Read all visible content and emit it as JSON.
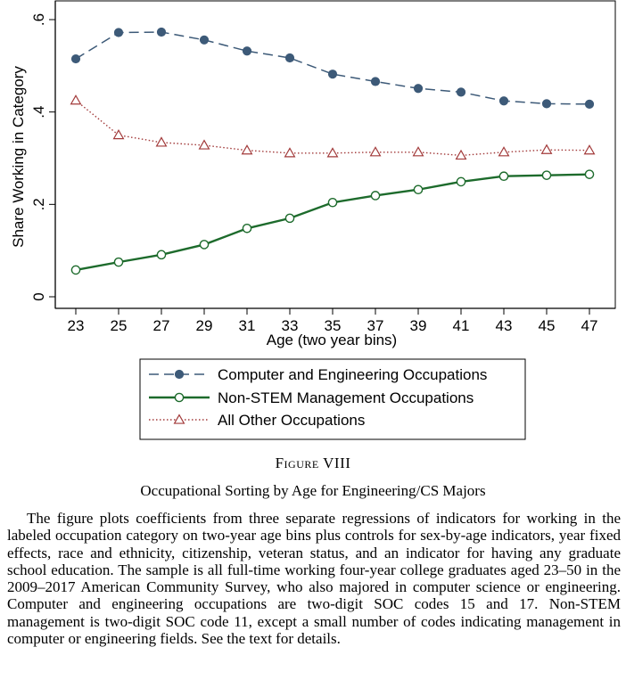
{
  "chart_data": {
    "type": "line",
    "xlabel": "Age (two year bins)",
    "ylabel": "Share Working in Category",
    "x": [
      23,
      25,
      27,
      29,
      31,
      33,
      35,
      37,
      39,
      41,
      43,
      45,
      47
    ],
    "x_ticks": [
      "23",
      "25",
      "27",
      "29",
      "31",
      "33",
      "35",
      "37",
      "39",
      "41",
      "43",
      "45",
      "47"
    ],
    "ylim": [
      0,
      0.6
    ],
    "y_ticks": [
      {
        "value": 0,
        "label": "0"
      },
      {
        "value": 0.2,
        "label": ".2"
      },
      {
        "value": 0.4,
        "label": ".4"
      },
      {
        "value": 0.6,
        "label": ".6"
      }
    ],
    "grid": false,
    "legend_position": "below",
    "series": [
      {
        "name": "Computer and Engineering Occupations",
        "color": "#3d5a78",
        "line_style": "dashed",
        "marker": "filled-circle",
        "values": [
          0.515,
          0.572,
          0.573,
          0.556,
          0.532,
          0.517,
          0.482,
          0.466,
          0.451,
          0.443,
          0.424,
          0.418,
          0.417
        ]
      },
      {
        "name": "Non-STEM Management Occupations",
        "color": "#1d6b2c",
        "line_style": "solid",
        "marker": "hollow-circle",
        "values": [
          0.058,
          0.075,
          0.091,
          0.113,
          0.148,
          0.17,
          0.204,
          0.219,
          0.232,
          0.249,
          0.261,
          0.263,
          0.265
        ]
      },
      {
        "name": "All Other Occupations",
        "color": "#a23a3a",
        "line_style": "dotted",
        "marker": "hollow-triangle",
        "values": [
          0.425,
          0.35,
          0.334,
          0.328,
          0.317,
          0.311,
          0.311,
          0.313,
          0.313,
          0.306,
          0.313,
          0.318,
          0.317
        ]
      }
    ]
  },
  "figure": {
    "label": "Figure VIII",
    "title": "Occupational Sorting by Age for Engineering/CS Majors",
    "caption": "The figure plots coefficients from three separate regressions of indicators for working in the labeled occupation category on two-year age bins plus controls for sex-by-age indicators, year fixed effects, race and ethnicity, citizenship, veteran status, and an indicator for having any graduate school education. The sample is all full-time working four-year college graduates aged 23–50 in the 2009–2017 American Community Survey, who also majored in computer science or engineering. Computer and engineering occupations are two-digit SOC codes 15 and 17. Non-STEM management is two-digit SOC code 11, except a small number of codes indicating management in computer or engineering fields. See the text for details."
  }
}
